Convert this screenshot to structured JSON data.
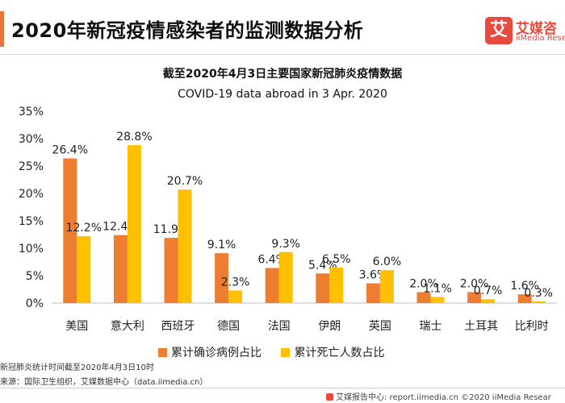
{
  "header": {
    "title": "2020年新冠疫情感染者的监测数据分析",
    "logo_mark": "艾",
    "logo_cn": "艾媒咨",
    "logo_en": "iiMedia Rese"
  },
  "colors": {
    "accent": "#e8743b",
    "series_confirmed": "#ed7d31",
    "series_deaths": "#ffc000"
  },
  "chart_data": {
    "type": "bar",
    "title": "截至2020年4月3日主要国家新冠肺炎疫情数据",
    "subtitle": "COVID-19 data abroad in 3 Apr. 2020",
    "categories": [
      "美国",
      "意大利",
      "西班牙",
      "德国",
      "法国",
      "伊朗",
      "英国",
      "瑞士",
      "土耳其",
      "比利时"
    ],
    "series": [
      {
        "name": "累计确诊病例占比",
        "values": [
          26.4,
          12.4,
          11.9,
          9.1,
          6.4,
          5.4,
          3.6,
          2.0,
          2.0,
          1.6
        ]
      },
      {
        "name": "累计死亡人数占比",
        "values": [
          12.2,
          28.8,
          20.7,
          2.3,
          9.3,
          6.5,
          6.0,
          1.1,
          0.7,
          0.3
        ]
      }
    ],
    "value_labels": [
      [
        "26.4%",
        "12.4%",
        "11.9%",
        "9.1%",
        "6.4%",
        "5.4%",
        "3.6%",
        "2.0%",
        "2.0%",
        "1.6%"
      ],
      [
        "12.2%",
        "28.8%",
        "20.7%",
        "2.3%",
        "9.3%",
        "6.5%",
        "6.0%",
        "1.1%",
        "0.7%",
        "0.3%"
      ]
    ],
    "y_ticks": [
      "0%",
      "5%",
      "10%",
      "15%",
      "20%",
      "25%",
      "30%",
      "35%"
    ],
    "ylim": [
      0,
      35
    ],
    "grid": false,
    "legend_position": "bottom"
  },
  "notes": {
    "footnote": "新冠肺炎统计时间截至2020年4月3日10时",
    "source": "来源：国际卫生组织，艾媒数据中心（data.iimedia.cn）"
  },
  "footer": {
    "text": "艾媒报告中心: report.iimedia.cn ©2020 iiMedia Resear"
  }
}
